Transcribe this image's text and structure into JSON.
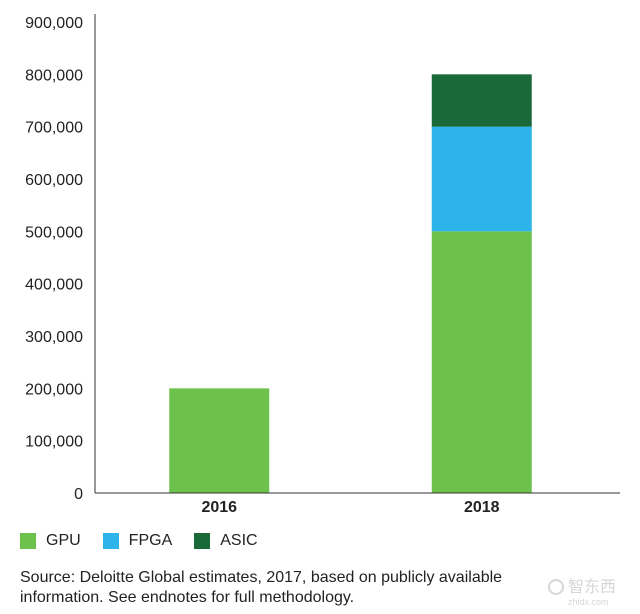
{
  "chart_data": {
    "type": "bar",
    "stacked": true,
    "categories": [
      "2016",
      "2018"
    ],
    "series": [
      {
        "name": "GPU",
        "values": [
          200000,
          500000
        ],
        "color": "#6cc24a"
      },
      {
        "name": "FPGA",
        "values": [
          0,
          200000
        ],
        "color": "#2db4ea"
      },
      {
        "name": "ASIC",
        "values": [
          0,
          100000
        ],
        "color": "#196a38"
      }
    ],
    "ylim": [
      0,
      900000
    ],
    "yticks": [
      "0",
      "100,000",
      "200,000",
      "300,000",
      "400,000",
      "500,000",
      "600,000",
      "700,000",
      "800,000",
      "900,000"
    ],
    "grid": false,
    "legend_position": "bottom-left"
  },
  "source": {
    "line1": "Source: Deloitte Global estimates, 2017, based on publicly available",
    "line2": "information. See endnotes for full methodology."
  },
  "watermark": {
    "brand": "智东西",
    "domain": "zhidx.com"
  }
}
